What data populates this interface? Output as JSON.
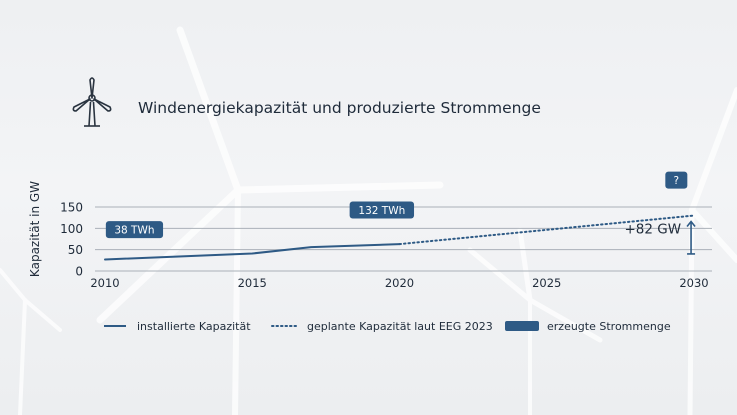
{
  "title": "Windenergiekapazität und produzierte Strommenge",
  "icon": "wind-turbine-icon",
  "colors": {
    "series": "#2e5a85",
    "label_bg": "#2e5a85",
    "label_text": "#ffffff",
    "grid": "#aab0b8"
  },
  "chart_data": {
    "type": "line",
    "ylabel": "Kapazität in GW",
    "xlabel": "",
    "xlim": [
      2010,
      2030
    ],
    "ylim": [
      0,
      150
    ],
    "x_ticks": [
      2010,
      2015,
      2020,
      2025,
      2030
    ],
    "y_ticks": [
      0,
      50,
      100,
      150
    ],
    "grid": "horizontal",
    "legend_position": "bottom",
    "series": [
      {
        "name": "installierte Kapazität",
        "style": "solid",
        "points": [
          [
            2010,
            27
          ],
          [
            2015,
            41
          ],
          [
            2017,
            56
          ],
          [
            2020,
            63
          ]
        ]
      },
      {
        "name": "geplante Kapazität laut EEG 2023",
        "style": "dotted",
        "points": [
          [
            2020,
            63
          ],
          [
            2030,
            130
          ]
        ]
      }
    ],
    "legend": [
      {
        "label": "installierte Kapazität",
        "kind": "solid-line"
      },
      {
        "label": "geplante Kapazität laut EEG 2023",
        "kind": "dotted-line"
      },
      {
        "label": "erzeugte Strommenge",
        "kind": "box"
      }
    ],
    "annotations": [
      {
        "text": "38 TWh",
        "x": 2011,
        "y": 97,
        "kind": "energy-box"
      },
      {
        "text": "132 TWh",
        "x": 2019.4,
        "y": 143,
        "kind": "energy-box"
      },
      {
        "text": "?",
        "x": 2029.4,
        "y": 213,
        "kind": "energy-box"
      },
      {
        "text": "+82 GW",
        "x": 2029,
        "y": 100,
        "kind": "delta",
        "from": 130,
        "to": 40
      }
    ]
  }
}
